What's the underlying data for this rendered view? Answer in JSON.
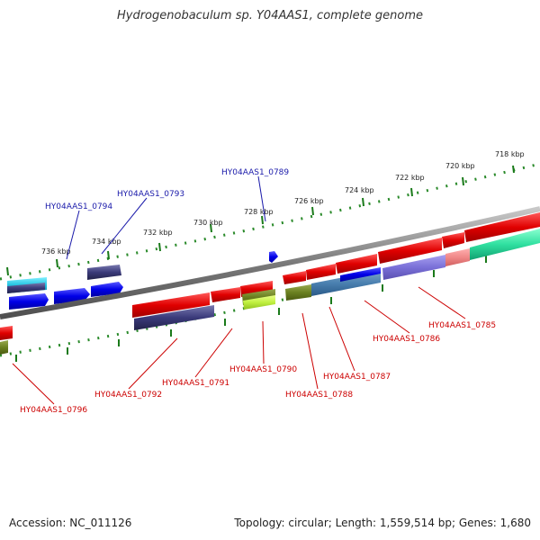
{
  "title": "Hydrogenobaculum sp. Y04AAS1, complete genome",
  "footer": {
    "accession": "Accession: NC_011126",
    "summary": "Topology: circular; Length: 1,559,514 bp; Genes: 1,680"
  },
  "scale": {
    "tick_labels": [
      "718 kbp",
      "720 kbp",
      "722 kbp",
      "724 kbp",
      "726 kbp",
      "728 kbp",
      "730 kbp",
      "732 kbp",
      "734 kbp",
      "736 kbp"
    ]
  },
  "labels": {
    "forward": [
      "HY04AAS1_0794",
      "HY04AAS1_0793",
      "HY04AAS1_0789"
    ],
    "reverse": [
      "HY04AAS1_0785",
      "HY04AAS1_0786",
      "HY04AAS1_0787",
      "HY04AAS1_0788",
      "HY04AAS1_0790",
      "HY04AAS1_0791",
      "HY04AAS1_0792",
      "HY04AAS1_0796"
    ]
  },
  "colors": {
    "forward_label": "#1a1aaa",
    "reverse_label": "#cc0000",
    "forward_gene": "#1010e0",
    "reverse_gene": "#e01010",
    "backbone": "#888888",
    "ticks": "#2a8a2a"
  }
}
